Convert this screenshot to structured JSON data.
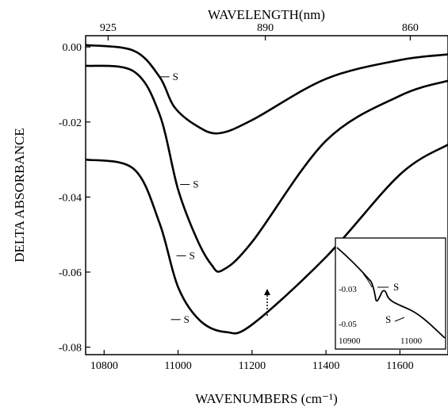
{
  "chart_data": {
    "type": "line",
    "xlabel": "WAVENUMBERS (cm⁻¹)",
    "ylabel": "DELTA ABSORBANCE",
    "top_xlabel": "WAVELENGTH(nm)",
    "xlim": [
      10750,
      11730
    ],
    "ylim": [
      -0.082,
      0.003
    ],
    "x_ticks": [
      "10800",
      "11000",
      "11200",
      "11400",
      "11600"
    ],
    "x_tick_values": [
      10800,
      11000,
      11200,
      11400,
      11600
    ],
    "y_ticks": [
      "0.00",
      "-0.02",
      "-0.04",
      "-0.06",
      "-0.08"
    ],
    "y_tick_values": [
      0.0,
      -0.02,
      -0.04,
      -0.06,
      -0.08
    ],
    "top_ticks": [
      "925",
      "890",
      "860"
    ],
    "top_tick_values": [
      925,
      890,
      860
    ],
    "grid": false,
    "series": [
      {
        "color": "#000000",
        "x": [
          10750,
          10880,
          10950,
          10990,
          11050,
          11110,
          11200,
          11400,
          11600,
          11730
        ],
        "y": [
          0.0005,
          -0.001,
          -0.008,
          -0.016,
          -0.021,
          -0.023,
          -0.0195,
          -0.0085,
          -0.0035,
          -0.002
        ]
      },
      {
        "color": "#000000",
        "x": [
          10750,
          10880,
          10950,
          11000,
          11050,
          11090,
          11120,
          11200,
          11400,
          11600,
          11730
        ],
        "y": [
          -0.005,
          -0.0065,
          -0.018,
          -0.038,
          -0.051,
          -0.058,
          -0.0595,
          -0.052,
          -0.025,
          -0.013,
          -0.009
        ]
      },
      {
        "color": "#000000",
        "x": [
          10750,
          10880,
          10950,
          11000,
          11060,
          11130,
          11200,
          11400,
          11600,
          11730
        ],
        "y": [
          -0.03,
          -0.0325,
          -0.047,
          -0.064,
          -0.073,
          -0.076,
          -0.074,
          -0.056,
          -0.034,
          -0.026
        ]
      }
    ],
    "annotations": [
      {
        "text": "S",
        "x": 10985,
        "y": -0.0088
      },
      {
        "text": "S",
        "x": 11040,
        "y": -0.0375
      },
      {
        "text": "S",
        "x": 11030,
        "y": -0.0565
      },
      {
        "text": "S",
        "x": 11015,
        "y": -0.0735
      }
    ],
    "inset": {
      "y_ticks": [
        "-0.03",
        "-0.05"
      ],
      "x_ticks": [
        "10900",
        "11000"
      ],
      "annotations": [
        "S",
        "S"
      ]
    }
  }
}
